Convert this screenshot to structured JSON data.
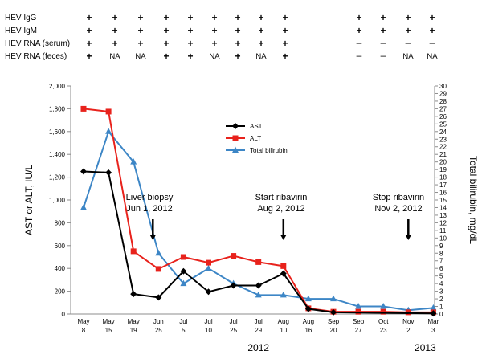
{
  "status_table": {
    "rows": [
      {
        "label": "HEV IgG",
        "cells": [
          "+",
          "+",
          "+",
          "+",
          "+",
          "+",
          "+",
          "+",
          "+",
          "",
          "+",
          "+",
          "+",
          "+"
        ]
      },
      {
        "label": "HEV IgM",
        "cells": [
          "+",
          "+",
          "+",
          "+",
          "+",
          "+",
          "+",
          "+",
          "+",
          "",
          "+",
          "+",
          "+",
          "+"
        ]
      },
      {
        "label": "HEV RNA (serum)",
        "cells": [
          "+",
          "+",
          "+",
          "+",
          "+",
          "+",
          "+",
          "+",
          "+",
          "",
          "–",
          "–",
          "–",
          "–"
        ]
      },
      {
        "label": "HEV RNA (feces)",
        "cells": [
          "+",
          "NA",
          "NA",
          "+",
          "+",
          "NA",
          "+",
          "NA",
          "+",
          "",
          "–",
          "–",
          "NA",
          "NA"
        ]
      }
    ]
  },
  "chart_data": {
    "type": "line",
    "categories": [
      [
        "May",
        "8"
      ],
      [
        "May",
        "15"
      ],
      [
        "May",
        "19"
      ],
      [
        "Jun",
        "25"
      ],
      [
        "Jul",
        "5"
      ],
      [
        "Jul",
        "10"
      ],
      [
        "Jul",
        "25"
      ],
      [
        "Jul",
        "29"
      ],
      [
        "Aug",
        "10"
      ],
      [
        "Aug",
        "16"
      ],
      [
        "Sep",
        "20"
      ],
      [
        "Sep",
        "27"
      ],
      [
        "Oct",
        "23"
      ],
      [
        "Nov",
        "2"
      ],
      [
        "Mar",
        "3"
      ]
    ],
    "year_labels": [
      {
        "label": "2012",
        "category_index": 7
      },
      {
        "label": "2013",
        "category_index": 14
      }
    ],
    "ylabel": "AST or ALT, IU/L",
    "ylim": [
      0,
      2000
    ],
    "yticks": [
      "0",
      "200",
      "400",
      "600",
      "800",
      "1,000",
      "1,200",
      "1,400",
      "1,600",
      "1,800",
      "2,000"
    ],
    "y2label": "Total bilirubin, mg/dL",
    "y2lim": [
      0,
      30
    ],
    "series": [
      {
        "name": "AST",
        "axis": "left",
        "color": "#000000",
        "marker": "diamond",
        "values": [
          1250,
          1240,
          175,
          145,
          375,
          195,
          250,
          250,
          355,
          45,
          15,
          null,
          null,
          null,
          5
        ]
      },
      {
        "name": "ALT",
        "axis": "left",
        "color": "#e8221c",
        "marker": "square",
        "values": [
          1800,
          1775,
          550,
          395,
          500,
          450,
          510,
          455,
          420,
          50,
          20,
          20,
          20,
          15,
          15
        ]
      },
      {
        "name": "Total bilirubin",
        "axis": "right",
        "color": "#3d86c6",
        "marker": "triangle",
        "values": [
          14,
          24,
          20,
          8,
          4,
          6,
          4,
          2.5,
          2.5,
          2,
          2,
          1,
          1,
          0.5,
          0.8
        ]
      }
    ],
    "legend_position": "center",
    "annotations": [
      {
        "lines": [
          "Liver biopsy",
          "Jun 1, 2012"
        ],
        "category_index": 3
      },
      {
        "lines": [
          "Start ribavirin",
          "Aug 2, 2012"
        ],
        "category_index": 8
      },
      {
        "lines": [
          "Stop ribavirin",
          "Nov 2, 2012"
        ],
        "category_index": 13
      }
    ]
  },
  "colors": {
    "ast": "#000000",
    "alt": "#e8221c",
    "bilirubin": "#3d86c6"
  }
}
